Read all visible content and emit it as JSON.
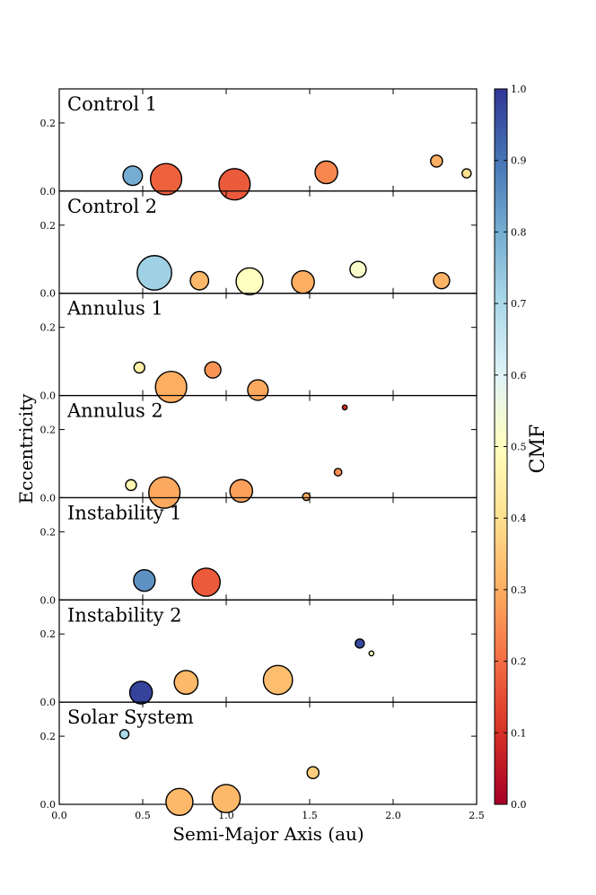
{
  "chart_data": {
    "type": "scatter",
    "xlabel": "Semi-Major Axis (au)",
    "ylabel": "Eccentricity",
    "xlim": [
      0.0,
      2.5
    ],
    "ylim": [
      0.0,
      0.3
    ],
    "xticks": [
      "0.0",
      "0.5",
      "1.0",
      "1.5",
      "2.0",
      "2.5"
    ],
    "yticks": [
      "0.0",
      "0.2"
    ],
    "colorbar": {
      "label": "CMF",
      "range": [
        0.0,
        1.0
      ],
      "ticks": [
        "0.0",
        "0.1",
        "0.2",
        "0.3",
        "0.4",
        "0.5",
        "0.6",
        "0.7",
        "0.8",
        "0.9",
        "1.0"
      ]
    },
    "panels": [
      {
        "title": "Control 1",
        "points": [
          {
            "a": 0.44,
            "e": 0.045,
            "size": 0.9,
            "cmf": 0.8
          },
          {
            "a": 0.64,
            "e": 0.035,
            "size": 1.45,
            "cmf": 0.18
          },
          {
            "a": 1.05,
            "e": 0.02,
            "size": 1.45,
            "cmf": 0.17
          },
          {
            "a": 1.6,
            "e": 0.055,
            "size": 1.05,
            "cmf": 0.24
          },
          {
            "a": 2.26,
            "e": 0.088,
            "size": 0.55,
            "cmf": 0.3
          },
          {
            "a": 2.44,
            "e": 0.052,
            "size": 0.42,
            "cmf": 0.4
          }
        ]
      },
      {
        "title": "Control 2",
        "points": [
          {
            "a": 0.57,
            "e": 0.06,
            "size": 1.6,
            "cmf": 0.72
          },
          {
            "a": 0.84,
            "e": 0.037,
            "size": 0.85,
            "cmf": 0.32
          },
          {
            "a": 1.14,
            "e": 0.035,
            "size": 1.25,
            "cmf": 0.5
          },
          {
            "a": 1.46,
            "e": 0.033,
            "size": 1.05,
            "cmf": 0.3
          },
          {
            "a": 1.79,
            "e": 0.07,
            "size": 0.75,
            "cmf": 0.52
          },
          {
            "a": 2.29,
            "e": 0.037,
            "size": 0.75,
            "cmf": 0.31
          }
        ]
      },
      {
        "title": "Annulus 1",
        "points": [
          {
            "a": 0.48,
            "e": 0.082,
            "size": 0.5,
            "cmf": 0.45
          },
          {
            "a": 0.67,
            "e": 0.025,
            "size": 1.45,
            "cmf": 0.3
          },
          {
            "a": 0.92,
            "e": 0.075,
            "size": 0.75,
            "cmf": 0.26
          },
          {
            "a": 1.19,
            "e": 0.016,
            "size": 0.95,
            "cmf": 0.29
          }
        ]
      },
      {
        "title": "Annulus 2",
        "points": [
          {
            "a": 0.43,
            "e": 0.037,
            "size": 0.5,
            "cmf": 0.47
          },
          {
            "a": 0.63,
            "e": 0.015,
            "size": 1.45,
            "cmf": 0.29
          },
          {
            "a": 1.09,
            "e": 0.02,
            "size": 1.05,
            "cmf": 0.28
          },
          {
            "a": 1.48,
            "e": 0.003,
            "size": 0.35,
            "cmf": 0.3
          },
          {
            "a": 1.67,
            "e": 0.075,
            "size": 0.35,
            "cmf": 0.25
          },
          {
            "a": 1.71,
            "e": 0.265,
            "size": 0.22,
            "cmf": 0.1
          }
        ]
      },
      {
        "title": "Instability 1",
        "points": [
          {
            "a": 0.51,
            "e": 0.057,
            "size": 1.0,
            "cmf": 0.85
          },
          {
            "a": 0.88,
            "e": 0.052,
            "size": 1.3,
            "cmf": 0.17
          }
        ]
      },
      {
        "title": "Instability 2",
        "points": [
          {
            "a": 0.49,
            "e": 0.028,
            "size": 1.05,
            "cmf": 0.98
          },
          {
            "a": 0.76,
            "e": 0.058,
            "size": 1.1,
            "cmf": 0.32
          },
          {
            "a": 1.31,
            "e": 0.065,
            "size": 1.35,
            "cmf": 0.33
          },
          {
            "a": 1.8,
            "e": 0.172,
            "size": 0.42,
            "cmf": 0.97
          },
          {
            "a": 1.87,
            "e": 0.143,
            "size": 0.22,
            "cmf": 0.5
          }
        ]
      },
      {
        "title": "Solar System",
        "points": [
          {
            "a": 0.39,
            "e": 0.206,
            "size": 0.42,
            "cmf": 0.7
          },
          {
            "a": 0.72,
            "e": 0.007,
            "size": 1.25,
            "cmf": 0.32
          },
          {
            "a": 1.0,
            "e": 0.017,
            "size": 1.3,
            "cmf": 0.32
          },
          {
            "a": 1.52,
            "e": 0.093,
            "size": 0.55,
            "cmf": 0.36
          }
        ]
      }
    ]
  }
}
